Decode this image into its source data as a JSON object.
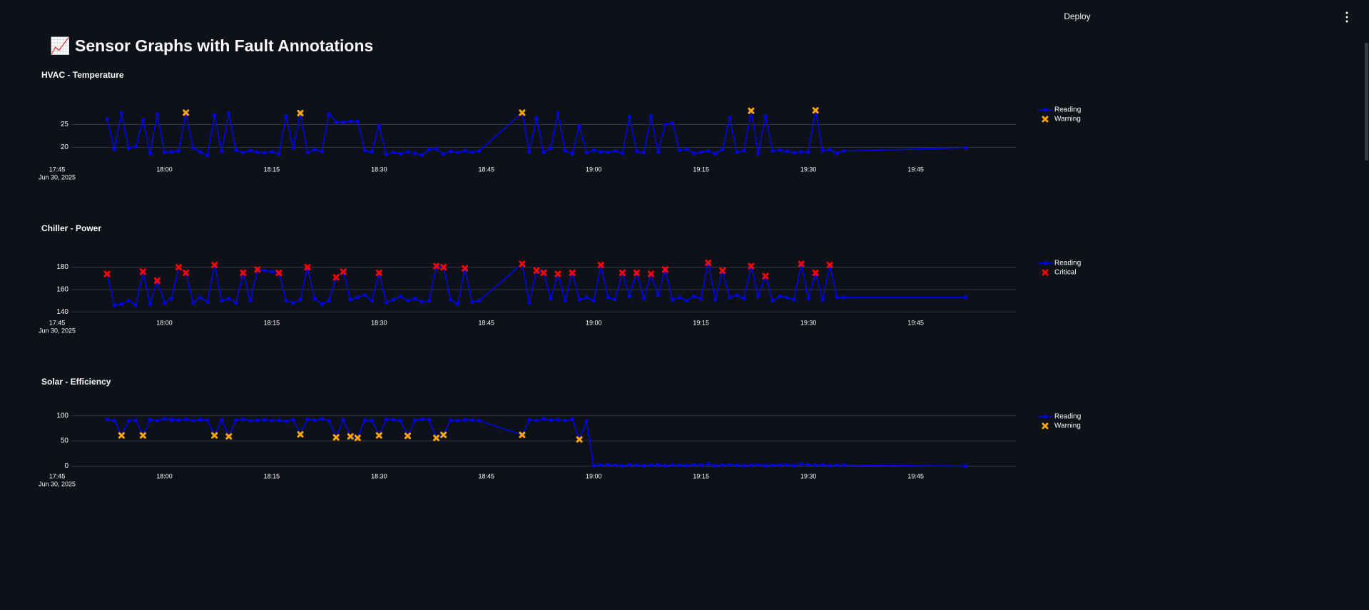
{
  "header": {
    "deploy": "Deploy"
  },
  "title": "📈 Sensor Graphs with Fault Annotations",
  "chart_data": [
    {
      "type": "line",
      "title": "HVAC - Temperature",
      "x": [
        "17:52",
        "17:53",
        "17:54",
        "17:55",
        "17:56",
        "17:57",
        "17:58",
        "17:59",
        "18:00",
        "18:01",
        "18:02",
        "18:03",
        "18:04",
        "18:05",
        "18:06",
        "18:07",
        "18:08",
        "18:09",
        "18:10",
        "18:11",
        "18:12",
        "18:13",
        "18:14",
        "18:15",
        "18:16",
        "18:17",
        "18:18",
        "18:19",
        "18:20",
        "18:21",
        "18:22",
        "18:23",
        "18:24",
        "18:25",
        "18:26",
        "18:27",
        "18:28",
        "18:29",
        "18:30",
        "18:31",
        "18:32",
        "18:33",
        "18:34",
        "18:35",
        "18:36",
        "18:37",
        "18:38",
        "18:39",
        "18:40",
        "18:41",
        "18:42",
        "18:43",
        "18:44",
        "18:50",
        "18:51",
        "18:52",
        "18:53",
        "18:54",
        "18:55",
        "18:56",
        "18:57",
        "18:58",
        "18:59",
        "19:00",
        "19:01",
        "19:02",
        "19:03",
        "19:04",
        "19:05",
        "19:06",
        "19:07",
        "19:08",
        "19:09",
        "19:10",
        "19:11",
        "19:12",
        "19:13",
        "19:14",
        "19:15",
        "19:16",
        "19:17",
        "19:18",
        "19:19",
        "19:20",
        "19:21",
        "19:22",
        "19:23",
        "19:24",
        "19:25",
        "19:26",
        "19:27",
        "19:28",
        "19:29",
        "19:30",
        "19:31",
        "19:32",
        "19:33",
        "19:34",
        "19:35",
        "19:52"
      ],
      "xlim": [
        "17:44",
        "19:59"
      ],
      "xticks": [
        "17:45",
        "18:00",
        "18:15",
        "18:30",
        "18:45",
        "19:00",
        "19:15",
        "19:30",
        "19:45"
      ],
      "x_date": "Jun 30, 2025",
      "ylim": [
        16.8,
        29.3
      ],
      "yticks": [
        20,
        25
      ],
      "grid": true,
      "series": [
        {
          "name": "Reading",
          "color": "#0000ff",
          "marker": "circle",
          "values": [
            26.2,
            19.6,
            27.5,
            19.8,
            20.1,
            26.0,
            18.7,
            27.3,
            18.9,
            19.0,
            19.2,
            27.6,
            19.9,
            19.0,
            18.2,
            27.0,
            19.1,
            27.4,
            19.4,
            18.8,
            19.3,
            18.9,
            18.8,
            19.0,
            18.5,
            26.8,
            19.9,
            27.5,
            18.9,
            19.5,
            19.1,
            27.3,
            25.5,
            25.5,
            25.7,
            25.7,
            19.3,
            19.0,
            24.8,
            18.4,
            18.9,
            18.6,
            19.0,
            18.7,
            18.3,
            19.5,
            19.7,
            18.5,
            19.1,
            18.8,
            19.3,
            18.9,
            19.2,
            27.6,
            19.0,
            26.5,
            18.9,
            19.8,
            27.5,
            19.3,
            18.6,
            24.7,
            18.8,
            19.4,
            19.0,
            18.9,
            19.2,
            18.7,
            26.7,
            19.1,
            18.8,
            26.8,
            19.0,
            25.0,
            25.3,
            19.4,
            19.6,
            18.7,
            18.9,
            19.2,
            18.6,
            19.5,
            26.5,
            18.9,
            19.3,
            28.0,
            18.6,
            26.8,
            19.2,
            19.4,
            19.1,
            18.8,
            19.0,
            18.9,
            28.1,
            19.3,
            19.5,
            18.7,
            19.2,
            19.9
          ]
        },
        {
          "name": "Warning",
          "color": "#ffa500",
          "marker": "x",
          "x": [
            "18:03",
            "18:19",
            "18:50",
            "19:22",
            "19:31"
          ],
          "values": [
            27.6,
            27.5,
            27.6,
            28.0,
            28.1
          ]
        }
      ]
    },
    {
      "type": "line",
      "title": "Chiller - Power",
      "x": [
        "17:52",
        "17:53",
        "17:54",
        "17:55",
        "17:56",
        "17:57",
        "17:58",
        "17:59",
        "18:00",
        "18:01",
        "18:02",
        "18:03",
        "18:04",
        "18:05",
        "18:06",
        "18:07",
        "18:08",
        "18:09",
        "18:10",
        "18:11",
        "18:12",
        "18:13",
        "18:14",
        "18:15",
        "18:16",
        "18:17",
        "18:18",
        "18:19",
        "18:20",
        "18:21",
        "18:22",
        "18:23",
        "18:24",
        "18:25",
        "18:26",
        "18:27",
        "18:28",
        "18:29",
        "18:30",
        "18:31",
        "18:32",
        "18:33",
        "18:34",
        "18:35",
        "18:36",
        "18:37",
        "18:38",
        "18:39",
        "18:40",
        "18:41",
        "18:42",
        "18:43",
        "18:44",
        "18:50",
        "18:51",
        "18:52",
        "18:53",
        "18:54",
        "18:55",
        "18:56",
        "18:57",
        "18:58",
        "18:59",
        "19:00",
        "19:01",
        "19:02",
        "19:03",
        "19:04",
        "19:05",
        "19:06",
        "19:07",
        "19:08",
        "19:09",
        "19:10",
        "19:11",
        "19:12",
        "19:13",
        "19:14",
        "19:15",
        "19:16",
        "19:17",
        "19:18",
        "19:19",
        "19:20",
        "19:21",
        "19:22",
        "19:23",
        "19:24",
        "19:25",
        "19:26",
        "19:27",
        "19:28",
        "19:29",
        "19:30",
        "19:31",
        "19:32",
        "19:33",
        "19:34",
        "19:35",
        "19:52"
      ],
      "xlim": [
        "17:44",
        "19:59"
      ],
      "xticks": [
        "17:45",
        "18:00",
        "18:15",
        "18:30",
        "18:45",
        "19:00",
        "19:15",
        "19:30",
        "19:45"
      ],
      "x_date": "Jun 30, 2025",
      "ylim": [
        137,
        188
      ],
      "yticks": [
        140,
        160,
        180
      ],
      "grid": true,
      "series": [
        {
          "name": "Reading",
          "color": "#0000ff",
          "marker": "circle",
          "values": [
            174,
            146,
            147,
            150,
            146,
            176,
            147,
            168,
            148,
            152,
            180,
            175,
            148,
            153,
            149,
            182,
            150,
            152,
            148,
            175,
            150,
            178,
            177,
            176,
            175,
            150,
            148,
            151,
            180,
            152,
            147,
            150,
            171,
            176,
            151,
            153,
            155,
            150,
            175,
            148,
            151,
            154,
            150,
            152,
            149,
            150,
            181,
            180,
            151,
            147,
            179,
            149,
            150,
            183,
            148,
            177,
            175,
            152,
            174,
            150,
            175,
            151,
            153,
            150,
            182,
            153,
            151,
            175,
            154,
            175,
            152,
            174,
            155,
            178,
            151,
            153,
            150,
            154,
            152,
            184,
            151,
            177,
            153,
            155,
            152,
            181,
            154,
            172,
            150,
            154,
            153,
            151,
            183,
            152,
            175,
            151,
            182,
            153,
            153,
            153
          ]
        },
        {
          "name": "Critical",
          "color": "#ff0000",
          "marker": "x",
          "x": [
            "17:52",
            "17:57",
            "17:59",
            "18:02",
            "18:03",
            "18:07",
            "18:11",
            "18:13",
            "18:16",
            "18:20",
            "18:24",
            "18:25",
            "18:30",
            "18:38",
            "18:39",
            "18:42",
            "18:50",
            "18:52",
            "18:53",
            "18:55",
            "18:57",
            "19:01",
            "19:04",
            "19:06",
            "19:08",
            "19:10",
            "19:16",
            "19:18",
            "19:22",
            "19:24",
            "19:29",
            "19:31",
            "19:33"
          ],
          "values": [
            174,
            176,
            168,
            180,
            175,
            182,
            175,
            178,
            175,
            180,
            171,
            176,
            175,
            181,
            180,
            179,
            183,
            177,
            175,
            174,
            175,
            182,
            175,
            175,
            174,
            178,
            184,
            177,
            181,
            172,
            183,
            175,
            182
          ]
        }
      ]
    },
    {
      "type": "line",
      "title": "Solar - Efficiency",
      "x": [
        "17:52",
        "17:53",
        "17:54",
        "17:55",
        "17:56",
        "17:57",
        "17:58",
        "17:59",
        "18:00",
        "18:01",
        "18:02",
        "18:03",
        "18:04",
        "18:05",
        "18:06",
        "18:07",
        "18:08",
        "18:09",
        "18:10",
        "18:11",
        "18:12",
        "18:13",
        "18:14",
        "18:15",
        "18:16",
        "18:17",
        "18:18",
        "18:19",
        "18:20",
        "18:21",
        "18:22",
        "18:23",
        "18:24",
        "18:25",
        "18:26",
        "18:27",
        "18:28",
        "18:29",
        "18:30",
        "18:31",
        "18:32",
        "18:33",
        "18:34",
        "18:35",
        "18:36",
        "18:37",
        "18:38",
        "18:39",
        "18:40",
        "18:41",
        "18:42",
        "18:43",
        "18:44",
        "18:50",
        "18:51",
        "18:52",
        "18:53",
        "18:54",
        "18:55",
        "18:56",
        "18:57",
        "18:58",
        "18:59",
        "19:00",
        "19:01",
        "19:02",
        "19:03",
        "19:04",
        "19:05",
        "19:06",
        "19:07",
        "19:08",
        "19:09",
        "19:10",
        "19:11",
        "19:12",
        "19:13",
        "19:14",
        "19:15",
        "19:16",
        "19:17",
        "19:18",
        "19:19",
        "19:20",
        "19:21",
        "19:22",
        "19:23",
        "19:24",
        "19:25",
        "19:26",
        "19:27",
        "19:28",
        "19:29",
        "19:30",
        "19:31",
        "19:32",
        "19:33",
        "19:34",
        "19:35",
        "19:52"
      ],
      "xlim": [
        "17:44",
        "19:59"
      ],
      "xticks": [
        "17:45",
        "18:00",
        "18:15",
        "18:30",
        "18:45",
        "19:00",
        "19:15",
        "19:30",
        "19:45"
      ],
      "x_date": "Jun 30, 2025",
      "ylim": [
        -5,
        108
      ],
      "yticks": [
        0,
        50,
        100
      ],
      "grid": true,
      "series": [
        {
          "name": "Reading",
          "color": "#0000ff",
          "marker": "circle",
          "values": [
            93,
            90,
            61,
            90,
            91,
            61,
            92,
            90,
            94,
            92,
            91,
            93,
            90,
            92,
            91,
            61,
            92,
            59,
            91,
            93,
            90,
            91,
            92,
            90,
            91,
            89,
            92,
            63,
            93,
            91,
            94,
            90,
            57,
            92,
            59,
            56,
            91,
            90,
            61,
            93,
            92,
            90,
            60,
            91,
            93,
            92,
            56,
            62,
            91,
            90,
            92,
            91,
            90,
            62,
            92,
            90,
            94,
            91,
            92,
            90,
            93,
            53,
            89,
            1,
            2,
            3,
            2,
            1,
            3,
            2,
            1,
            2,
            3,
            1,
            2,
            2,
            1,
            3,
            2,
            4,
            1,
            2,
            3,
            2,
            1,
            2,
            3,
            1,
            2,
            2,
            3,
            1,
            4,
            3,
            2,
            3,
            1,
            2,
            2,
            0
          ]
        },
        {
          "name": "Warning",
          "color": "#ffa500",
          "marker": "x",
          "x": [
            "17:54",
            "17:57",
            "18:07",
            "18:09",
            "18:19",
            "18:24",
            "18:26",
            "18:27",
            "18:30",
            "18:34",
            "18:38",
            "18:39",
            "18:50",
            "18:58"
          ],
          "values": [
            61,
            61,
            61,
            59,
            63,
            57,
            59,
            56,
            61,
            60,
            56,
            62,
            62,
            53
          ]
        }
      ]
    }
  ]
}
